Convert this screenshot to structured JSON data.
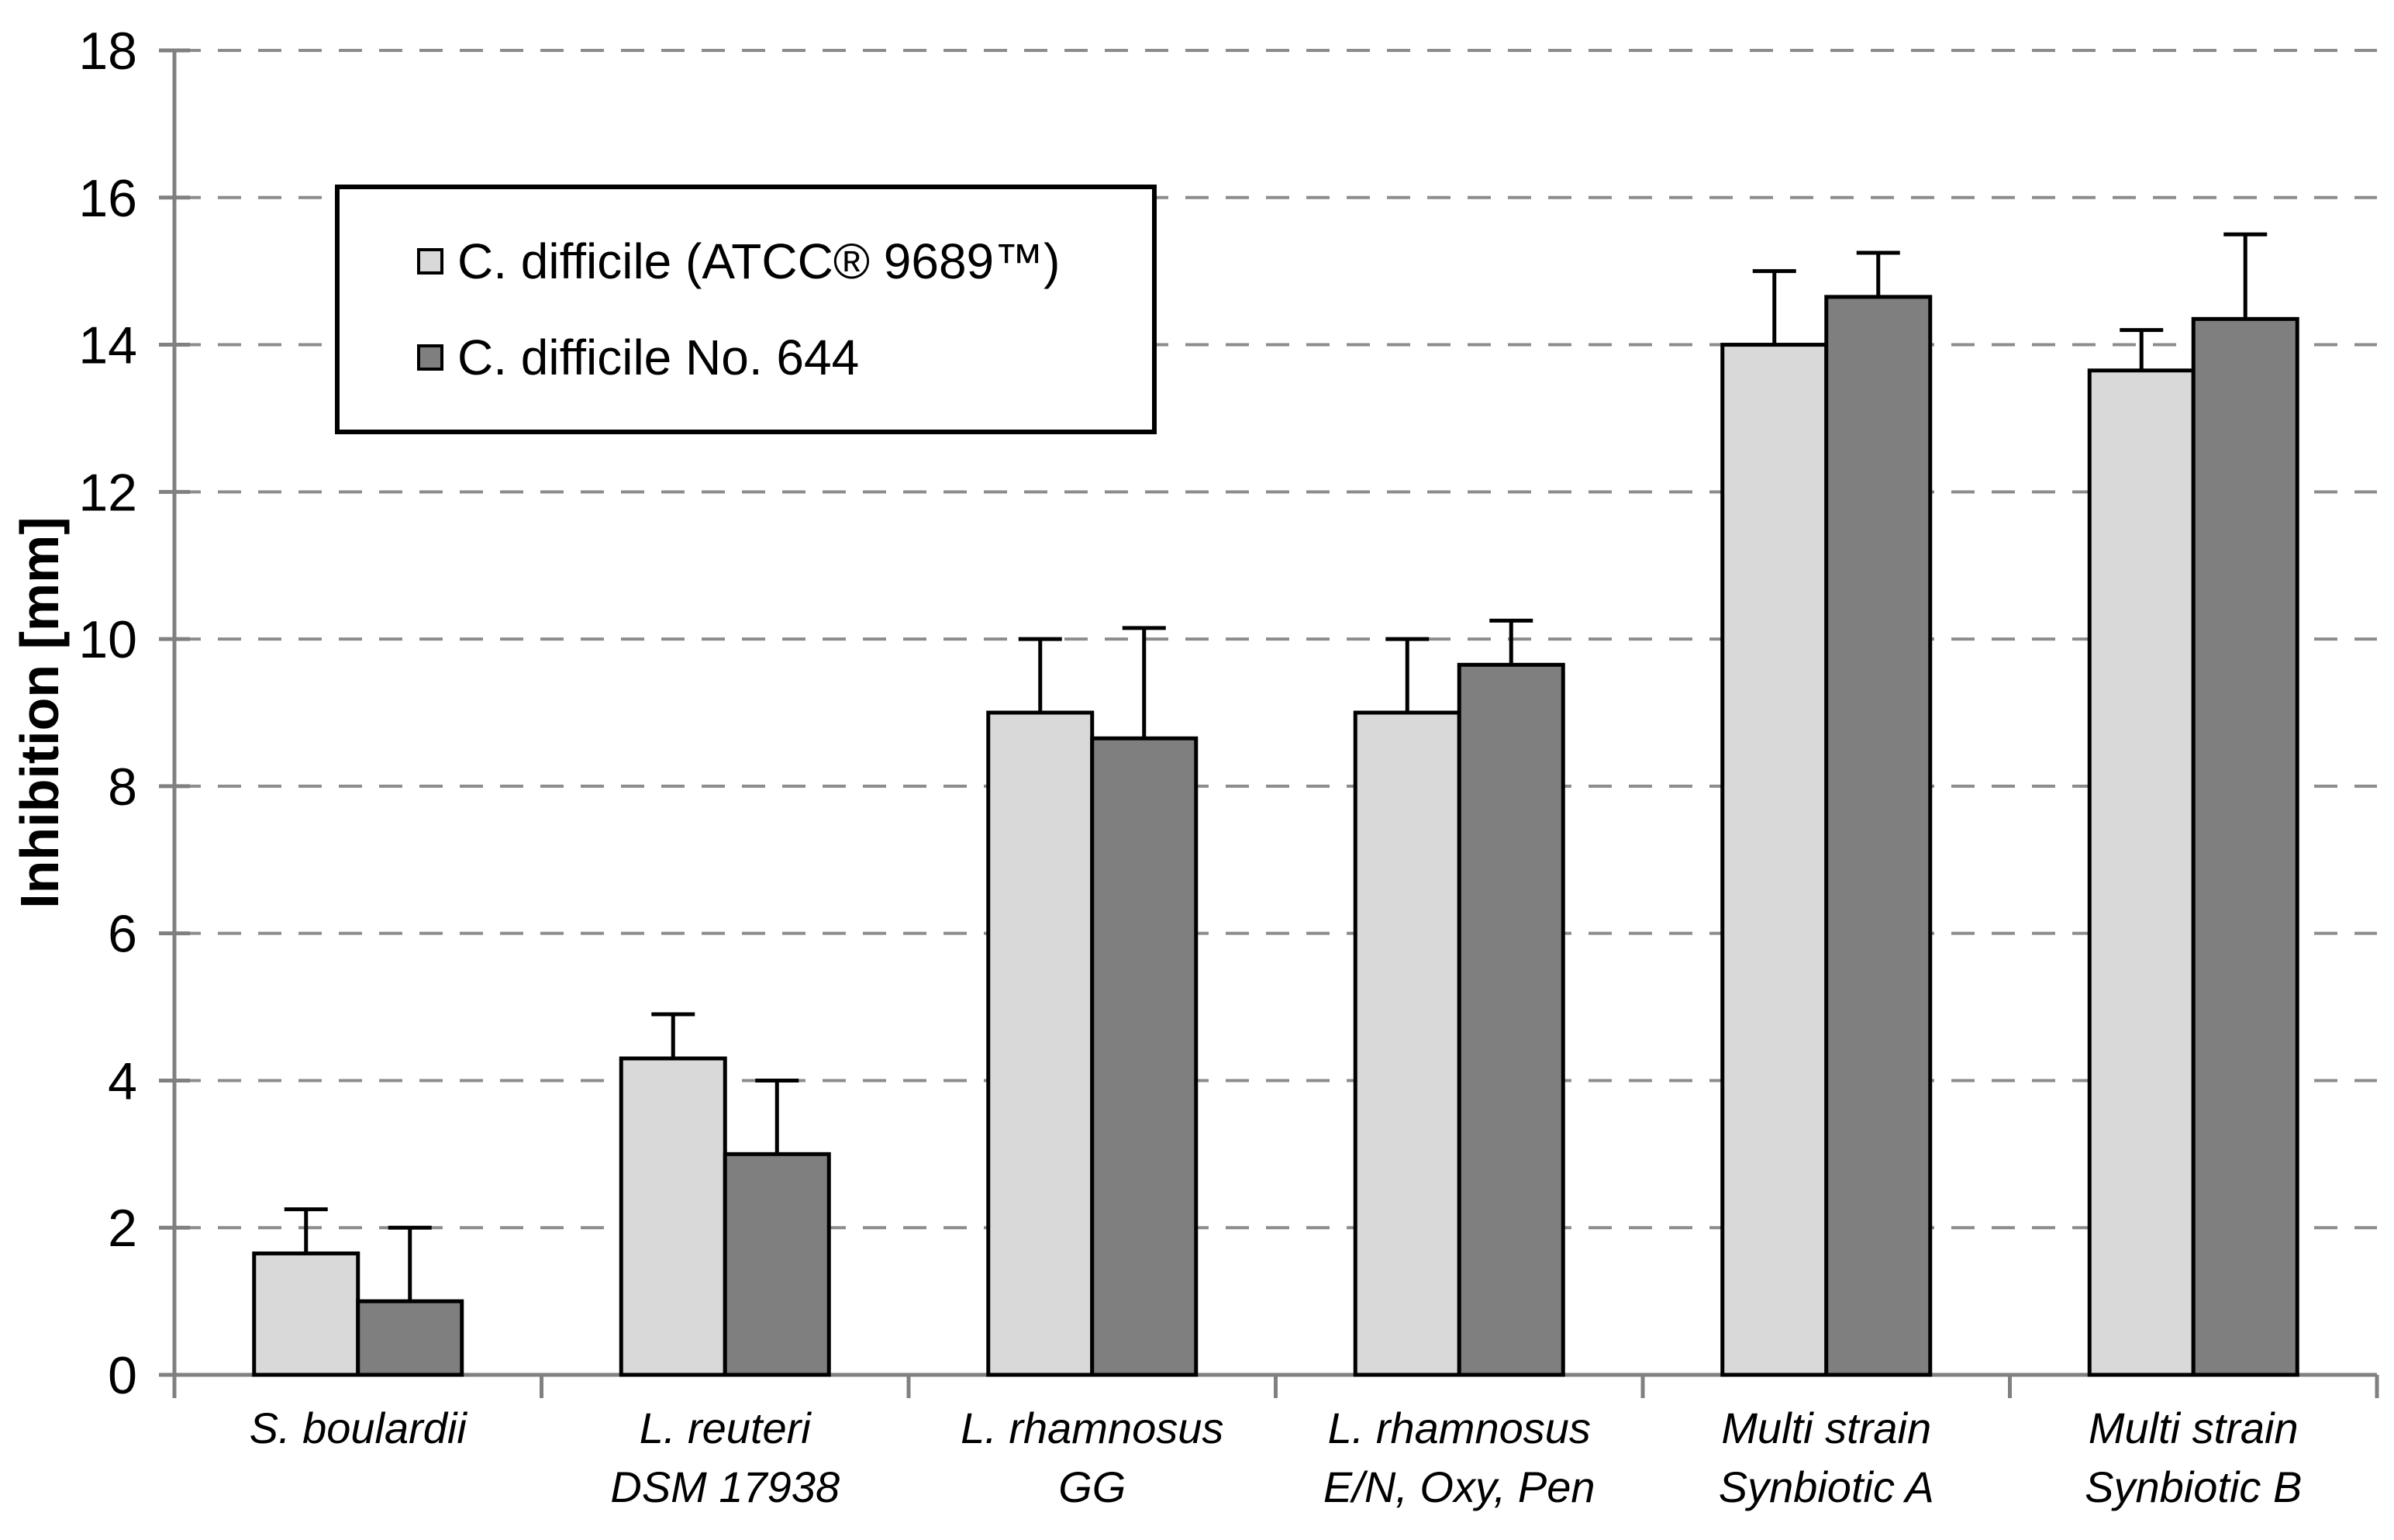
{
  "chart_data": {
    "type": "bar",
    "title": "",
    "xlabel": "",
    "ylabel": "Inhibition [mm]",
    "ylim": [
      0,
      18
    ],
    "ytick_step": 2,
    "yticks": [
      0,
      2,
      4,
      6,
      8,
      10,
      12,
      14,
      16,
      18
    ],
    "grid": "horizontal-dashed",
    "legend_position": "top-left-inside",
    "categories": [
      "S. boulardii",
      "L. reuteri\nDSM 17938",
      "L. rhamnosus\nGG",
      "L. rhamnosus\nE/N, Oxy, Pen",
      "Multi strain\nSynbiotic A",
      "Multi strain\nSynbiotic B"
    ],
    "series": [
      {
        "name": "C. difficile (ATCC® 9689™)",
        "color": "#D9D9D9",
        "values": [
          1.65,
          4.3,
          9.0,
          9.0,
          14.0,
          13.65
        ],
        "errors_plus": [
          0.6,
          0.6,
          1.0,
          1.0,
          1.0,
          0.55
        ]
      },
      {
        "name": "C. difficile No. 644",
        "color": "#7F7F7F",
        "values": [
          1.0,
          3.0,
          8.65,
          9.65,
          14.65,
          14.35
        ],
        "errors_plus": [
          1.0,
          1.0,
          1.5,
          0.6,
          0.6,
          1.15
        ]
      }
    ]
  },
  "colors": {
    "background": "#FFFFFF",
    "axis": "#808080",
    "gridline": "#8C8C8C",
    "bar_border": "#000000",
    "error_bar": "#000000",
    "text": "#000000"
  }
}
